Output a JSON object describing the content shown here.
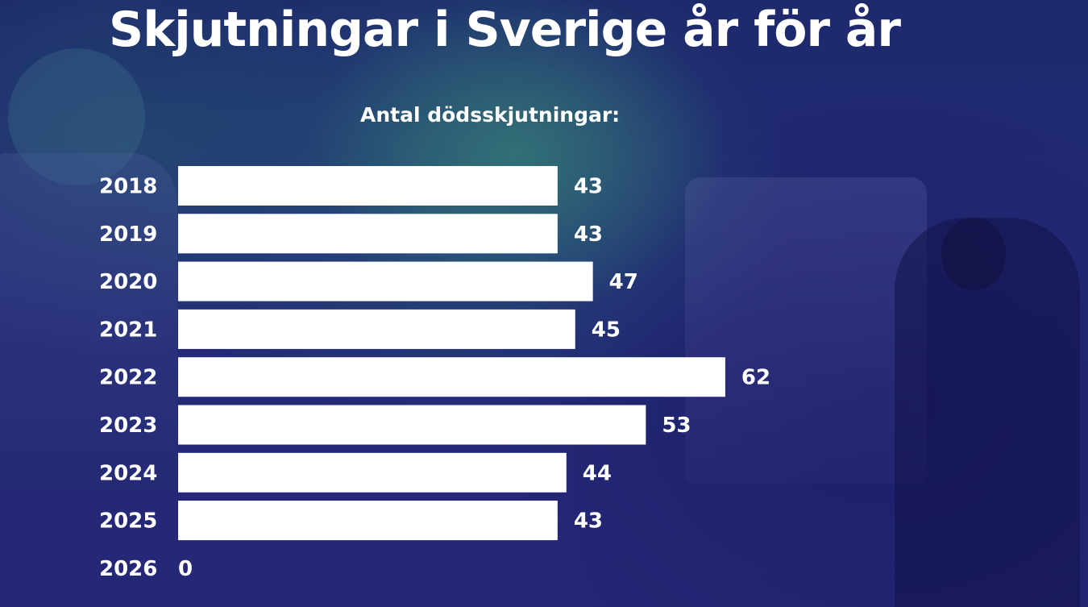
{
  "title": "Skjutningar i Sverige år för år",
  "subtitle": "Antal dödsskjutningar:",
  "colors": {
    "bar": "#ffffff",
    "text": "#ffffff",
    "background": "#262b78"
  },
  "chart_data": {
    "type": "bar",
    "orientation": "horizontal",
    "title": "Skjutningar i Sverige år för år",
    "subtitle": "Antal dödsskjutningar:",
    "categories": [
      "2018",
      "2019",
      "2020",
      "2021",
      "2022",
      "2023",
      "2024",
      "2025",
      "2026"
    ],
    "values": [
      43,
      43,
      47,
      45,
      62,
      53,
      44,
      43,
      0
    ],
    "data_labels": true,
    "grid": false,
    "legend": "none"
  }
}
